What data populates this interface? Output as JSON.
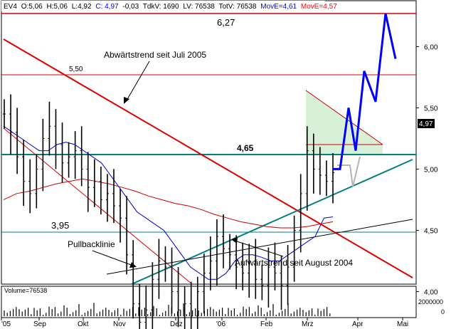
{
  "header": {
    "symbol": "EV4",
    "open": "O:5,06",
    "high": "H:5,06",
    "low": "L:4,92",
    "close": "C: 4,97",
    "change": "-0,03",
    "tdkv": "TdkV: 1690",
    "lv": "LV: 76538",
    "totv": "TotV: 76538",
    "move1": "MovE=4,61",
    "move2": "MovE=4,57"
  },
  "colors": {
    "price_bars": "#000000",
    "move_short": "#0000cc",
    "move_long": "#cc0000",
    "trend_red": "#dd0000",
    "trend_teal": "#008080",
    "forecast": "#0000ff",
    "triangle_fill": "#d8efd8",
    "current_price_box": "#000000",
    "header_blue": "#0000ff",
    "header_red": "#ff0000"
  },
  "annotations": {
    "resistance_top": "6,27",
    "level_550": "5,50",
    "level_465": "4,65",
    "level_395": "3,95",
    "downtrend": "Abwärtstrend seit Juli 2005",
    "uptrend": "Aufwärtstrend seit August 2004",
    "pullback": "Pullbacklinie",
    "current_price": "4,97"
  },
  "volume": {
    "label": "Volume=76538",
    "axis_top": "2000000",
    "axis_bottom": "0"
  },
  "chart_data": {
    "type": "bar",
    "title": "",
    "xlabel": "",
    "ylabel": "",
    "ylim": [
      3.53,
      6.27
    ],
    "x_tick_labels": [
      "'05",
      "Sep",
      "Okt",
      "Nov",
      "Dez",
      "'06",
      "Feb",
      "Mrz",
      "Apr",
      "Mai"
    ],
    "y_tick_labels": [
      "6,00",
      "5,50",
      "5,00",
      "4,50",
      "4,00"
    ],
    "y_ticks": [
      6.0,
      5.5,
      5.0,
      4.5,
      4.0
    ],
    "horizontal_levels": [
      6.27,
      5.5,
      4.65,
      3.95
    ],
    "series": [
      {
        "values": [
          5.45,
          5.3,
          5.1,
          4.9,
          4.8,
          5.0,
          5.25,
          5.35,
          5.2,
          5.05,
          5.1,
          5.15,
          5.0,
          4.85,
          4.9,
          4.75,
          4.8,
          4.7,
          4.6,
          4.3,
          3.9,
          3.75,
          3.85,
          4.1,
          4.25,
          4.2,
          4.0,
          3.85,
          3.9,
          3.8,
          4.0,
          4.15,
          4.25,
          4.45,
          4.35,
          4.3,
          4.2,
          4.15,
          4.25,
          4.1,
          4.05,
          4.2,
          4.15,
          4.05,
          4.2,
          4.5,
          4.8,
          5.15,
          5.0,
          4.95,
          4.9,
          4.97
        ]
      },
      {
        "values": [
          5.35,
          5.3,
          5.25,
          5.2,
          5.15,
          5.15,
          5.2,
          5.22,
          5.2,
          5.15,
          5.1,
          5.05,
          4.95,
          4.85,
          4.75,
          4.65,
          4.6,
          4.55,
          4.5,
          4.4,
          4.3,
          4.2,
          4.15,
          4.1,
          4.1,
          4.15,
          4.25,
          4.3,
          4.3,
          4.28,
          4.25,
          4.25,
          4.3,
          4.35,
          4.4,
          4.45,
          4.6,
          4.61
        ]
      },
      {
        "values": [
          4.75,
          4.8,
          4.82,
          4.85,
          4.88,
          4.9,
          4.92,
          4.9,
          4.88,
          4.85,
          4.82,
          4.78,
          4.75,
          4.72,
          4.7,
          4.67,
          4.63,
          4.6,
          4.57,
          4.55,
          4.53,
          4.52,
          4.52,
          4.53,
          4.55,
          4.57
        ]
      },
      {
        "values": [
          5.0,
          5.0,
          5.5,
          5.15,
          5.8,
          5.55,
          6.27,
          5.9
        ]
      }
    ]
  }
}
